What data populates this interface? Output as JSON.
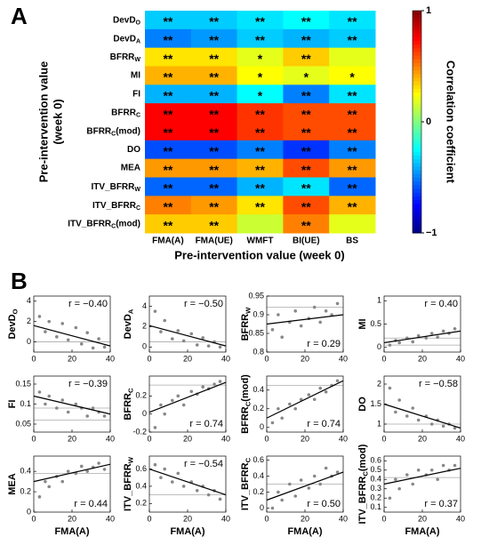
{
  "panels": [
    "A",
    "B"
  ],
  "chart_data": [
    {
      "type": "heatmap",
      "xlabel": "Pre-intervention value (week 0)",
      "ylabel": [
        "Pre-intervention value",
        "(week 0)"
      ],
      "colorbar_label": "Correlation coefficient",
      "clim": [
        -1,
        1
      ],
      "cticks": [
        1,
        0,
        {
          "value": -1,
          "label": "−1"
        }
      ],
      "colormap": "jet",
      "categories": [
        "FMA(A)",
        "FMA(UE)",
        "WMFT",
        "BI(UE)",
        "BS"
      ],
      "row_labels": [
        {
          "main": "DevD",
          "sub": "O"
        },
        {
          "main": "DevD",
          "sub": "A"
        },
        {
          "main": "BFRR",
          "sub": "W"
        },
        "MI",
        "FI",
        {
          "main": "BFRR",
          "sub": "C"
        },
        {
          "main": "BFRR",
          "sub": "C",
          "tail": "(mod)"
        },
        "DO",
        "MEA",
        {
          "main": "ITV_BFRR",
          "sub": "W"
        },
        {
          "main": "ITV_BFRR",
          "sub": "C"
        },
        {
          "main": "ITV_BFRR",
          "sub": "C",
          "tail": "(mod)"
        }
      ],
      "values": [
        [
          -0.35,
          -0.35,
          -0.3,
          -0.25,
          -0.3
        ],
        [
          -0.5,
          -0.45,
          -0.35,
          -0.4,
          -0.35
        ],
        [
          0.3,
          0.3,
          0.2,
          0.35,
          0.2
        ],
        [
          0.4,
          0.4,
          0.25,
          0.2,
          0.25
        ],
        [
          -0.4,
          -0.4,
          -0.25,
          -0.5,
          -0.3
        ],
        [
          0.75,
          0.75,
          0.65,
          0.6,
          0.6
        ],
        [
          0.75,
          0.75,
          0.65,
          0.6,
          0.6
        ],
        [
          -0.6,
          -0.6,
          -0.5,
          -0.65,
          -0.5
        ],
        [
          0.45,
          0.45,
          0.4,
          0.6,
          0.45
        ],
        [
          -0.55,
          -0.55,
          -0.4,
          -0.3,
          -0.55
        ],
        [
          0.5,
          0.45,
          0.3,
          0.6,
          0.4
        ],
        [
          0.35,
          0.35,
          0.15,
          0.5,
          0.2
        ]
      ],
      "significance": [
        [
          "**",
          "**",
          "**",
          "**",
          "**"
        ],
        [
          "**",
          "**",
          "**",
          "**",
          "**"
        ],
        [
          "**",
          "**",
          "*",
          "**",
          null
        ],
        [
          "**",
          "**",
          "*",
          "*",
          "*"
        ],
        [
          "**",
          "**",
          "*",
          "**",
          "**"
        ],
        [
          "**",
          "**",
          "**",
          "**",
          "**"
        ],
        [
          "**",
          "**",
          "**",
          "**",
          "**"
        ],
        [
          "**",
          "**",
          "**",
          "**",
          "**"
        ],
        [
          "**",
          "**",
          "**",
          "**",
          "**"
        ],
        [
          "**",
          "**",
          "**",
          "**",
          "**"
        ],
        [
          "**",
          "**",
          "**",
          "**",
          "**"
        ],
        [
          "**",
          "**",
          null,
          "**",
          null
        ]
      ]
    },
    {
      "type": "scatter",
      "ylabel": {
        "main": "DevD",
        "sub": "O"
      },
      "annotation": "r = −0.40",
      "annotation_corner": "top-right",
      "xlim": [
        0,
        40
      ],
      "xticks": [
        0,
        20,
        40
      ],
      "ylim": [
        -1,
        4.5
      ],
      "yticks": [
        0,
        2,
        4
      ],
      "color": "#888888",
      "x": [
        3,
        6,
        8,
        12,
        15,
        18,
        22,
        25,
        28,
        31,
        34,
        37
      ],
      "y": [
        2.5,
        1.0,
        2.0,
        0.5,
        1.8,
        0.2,
        1.4,
        -0.2,
        0.9,
        -0.6,
        0.3,
        -0.5
      ],
      "ref_lines": [
        0
      ],
      "fit": {
        "x": [
          0,
          40
        ],
        "y": [
          1.6,
          -0.4
        ]
      }
    },
    {
      "type": "scatter",
      "ylabel": {
        "main": "DevD",
        "sub": "A"
      },
      "annotation": "r = −0.50",
      "annotation_corner": "top-right",
      "xlim": [
        0,
        40
      ],
      "xticks": [
        0,
        20,
        40
      ],
      "ylim": [
        -0.5,
        5
      ],
      "yticks": [
        0,
        2,
        4
      ],
      "color": "#888888",
      "x": [
        3,
        6,
        8,
        12,
        15,
        18,
        22,
        25,
        28,
        31,
        34,
        37
      ],
      "y": [
        3.5,
        1.5,
        2.6,
        0.8,
        1.6,
        0.6,
        1.3,
        0.2,
        0.9,
        0.1,
        0.5,
        0.0
      ],
      "ref_lines": [
        0.5
      ],
      "fit": {
        "x": [
          0,
          40
        ],
        "y": [
          2.1,
          0.1
        ]
      }
    },
    {
      "type": "scatter",
      "ylabel": {
        "main": "BFRR",
        "sub": "W"
      },
      "annotation": "r = 0.29",
      "annotation_corner": "bottom-right",
      "xlim": [
        0,
        40
      ],
      "xticks": [
        0,
        20,
        40
      ],
      "ylim": [
        0.8,
        0.95
      ],
      "yticks": [
        0.8,
        0.85,
        0.9,
        0.95
      ],
      "color": "#888888",
      "x": [
        3,
        6,
        8,
        12,
        15,
        18,
        22,
        25,
        28,
        31,
        34,
        37
      ],
      "y": [
        0.86,
        0.9,
        0.84,
        0.88,
        0.91,
        0.87,
        0.89,
        0.92,
        0.88,
        0.91,
        0.9,
        0.93
      ],
      "ref_lines": [
        0.92
      ],
      "fit": {
        "x": [
          0,
          40
        ],
        "y": [
          0.875,
          0.9
        ]
      }
    },
    {
      "type": "scatter",
      "ylabel": "MI",
      "annotation": "r = 0.40",
      "annotation_corner": "top-right",
      "xlim": [
        0,
        40
      ],
      "xticks": [
        0,
        20,
        40
      ],
      "ylim": [
        -0.1,
        1.1
      ],
      "yticks": [
        0,
        0.5,
        1
      ],
      "color": "#888888",
      "x": [
        3,
        6,
        8,
        12,
        15,
        18,
        22,
        25,
        28,
        31,
        34,
        37
      ],
      "y": [
        0.05,
        0.15,
        0.1,
        0.2,
        0.12,
        0.25,
        0.2,
        0.3,
        0.22,
        0.35,
        0.3,
        0.4
      ],
      "ref_lines": [
        0.05,
        0.2
      ],
      "fit": {
        "x": [
          0,
          40
        ],
        "y": [
          0.1,
          0.35
        ]
      }
    },
    {
      "type": "scatter",
      "ylabel": "FI",
      "annotation": "r = −0.39",
      "annotation_corner": "top-right",
      "xlim": [
        0,
        40
      ],
      "xticks": [
        0,
        20,
        40
      ],
      "ylim": [
        0.03,
        0.17
      ],
      "yticks": [
        0.05,
        0.1,
        0.15
      ],
      "color": "#888888",
      "x": [
        3,
        6,
        8,
        12,
        15,
        18,
        22,
        25,
        28,
        31,
        34,
        37
      ],
      "y": [
        0.13,
        0.1,
        0.12,
        0.09,
        0.11,
        0.08,
        0.1,
        0.09,
        0.07,
        0.09,
        0.08,
        0.07
      ],
      "ref_lines": [
        0.06,
        0.09
      ],
      "fit": {
        "x": [
          0,
          40
        ],
        "y": [
          0.12,
          0.075
        ]
      }
    },
    {
      "type": "scatter",
      "ylabel": {
        "main": "BFRR",
        "sub": "C"
      },
      "annotation": "r = 0.74",
      "annotation_corner": "bottom-right",
      "xlim": [
        0,
        40
      ],
      "xticks": [
        0,
        20,
        40
      ],
      "ylim": [
        -0.2,
        0.42
      ],
      "yticks": [
        -0.2,
        0,
        0.2
      ],
      "color": "#888888",
      "x": [
        3,
        6,
        8,
        12,
        15,
        18,
        22,
        25,
        28,
        31,
        34,
        37
      ],
      "y": [
        -0.15,
        0.1,
        0.0,
        0.15,
        0.2,
        0.1,
        0.25,
        0.22,
        0.3,
        0.28,
        0.33,
        0.36
      ],
      "ref_lines": [
        0.32
      ],
      "fit": {
        "x": [
          0,
          40
        ],
        "y": [
          0.02,
          0.35
        ]
      }
    },
    {
      "type": "scatter",
      "ylabel": {
        "main": "BFRR",
        "sub": "C",
        "tail": "(mod)"
      },
      "annotation": "r = 0.74",
      "annotation_corner": "bottom-right",
      "xlim": [
        0,
        40
      ],
      "xticks": [
        0,
        20,
        40
      ],
      "ylim": [
        -0.05,
        0.55
      ],
      "yticks": [
        0,
        0.2,
        0.4
      ],
      "color": "#888888",
      "x": [
        3,
        6,
        8,
        12,
        15,
        18,
        22,
        25,
        28,
        31,
        34,
        37
      ],
      "y": [
        0.05,
        0.2,
        0.1,
        0.25,
        0.2,
        0.3,
        0.35,
        0.3,
        0.42,
        0.38,
        0.45,
        0.5
      ],
      "ref_lines": [
        0.45
      ],
      "fit": {
        "x": [
          0,
          40
        ],
        "y": [
          0.1,
          0.5
        ]
      }
    },
    {
      "type": "scatter",
      "ylabel": "DO",
      "annotation": "r = −0.58",
      "annotation_corner": "top-right",
      "xlim": [
        0,
        40
      ],
      "xticks": [
        0,
        20,
        40
      ],
      "ylim": [
        0.8,
        2.2
      ],
      "yticks": [
        1,
        1.5,
        2
      ],
      "color": "#888888",
      "x": [
        3,
        6,
        8,
        12,
        15,
        18,
        22,
        25,
        28,
        31,
        34,
        37
      ],
      "y": [
        1.9,
        1.3,
        1.6,
        1.2,
        1.4,
        1.1,
        1.2,
        1.0,
        1.1,
        0.95,
        1.0,
        0.9
      ],
      "ref_lines": [
        1
      ],
      "fit": {
        "x": [
          0,
          40
        ],
        "y": [
          1.5,
          0.9
        ]
      }
    },
    {
      "type": "scatter",
      "ylabel": "MEA",
      "xlabel": "FMA(A)",
      "annotation": "r = 0.44",
      "annotation_corner": "bottom-right",
      "xlim": [
        0,
        40
      ],
      "xticks": [
        0,
        20,
        40
      ],
      "ylim": [
        0,
        0.55
      ],
      "yticks": [
        0,
        0.2,
        0.4
      ],
      "color": "#888888",
      "x": [
        3,
        6,
        8,
        12,
        15,
        18,
        22,
        25,
        28,
        31,
        34,
        37
      ],
      "y": [
        0.15,
        0.3,
        0.25,
        0.35,
        0.3,
        0.4,
        0.38,
        0.45,
        0.4,
        0.44,
        0.48,
        0.42
      ],
      "ref_lines": [
        0.38
      ],
      "fit": {
        "x": [
          0,
          40
        ],
        "y": [
          0.3,
          0.47
        ]
      }
    },
    {
      "type": "scatter",
      "ylabel": {
        "main": "ITV_BFRR",
        "sub": "W"
      },
      "xlabel": "FMA(A)",
      "annotation": "r = −0.54",
      "annotation_corner": "top-right",
      "xlim": [
        0,
        40
      ],
      "xticks": [
        0,
        20,
        40
      ],
      "ylim": [
        0.1,
        0.75
      ],
      "yticks": [
        0.2,
        0.4,
        0.6
      ],
      "color": "#888888",
      "x": [
        3,
        6,
        8,
        12,
        15,
        18,
        22,
        25,
        28,
        31,
        34,
        37
      ],
      "y": [
        0.65,
        0.5,
        0.6,
        0.45,
        0.55,
        0.4,
        0.45,
        0.35,
        0.4,
        0.3,
        0.35,
        0.25
      ],
      "ref_lines": [
        0.3
      ],
      "fit": {
        "x": [
          0,
          40
        ],
        "y": [
          0.6,
          0.3
        ]
      }
    },
    {
      "type": "scatter",
      "ylabel": {
        "main": "ITV_BFRR",
        "sub": "C"
      },
      "xlabel": "FMA(A)",
      "annotation": "r = 0.50",
      "annotation_corner": "bottom-right",
      "xlim": [
        0,
        40
      ],
      "xticks": [
        0,
        20,
        40
      ],
      "ylim": [
        -0.05,
        0.65
      ],
      "yticks": [
        0,
        0.2,
        0.4,
        0.6
      ],
      "color": "#888888",
      "x": [
        3,
        6,
        8,
        12,
        15,
        18,
        22,
        25,
        28,
        31,
        34,
        37
      ],
      "y": [
        0.0,
        0.2,
        0.1,
        0.3,
        0.15,
        0.35,
        0.25,
        0.4,
        0.3,
        0.5,
        0.4,
        0.45
      ],
      "ref_lines": [
        0.3
      ],
      "fit": {
        "x": [
          0,
          40
        ],
        "y": [
          0.1,
          0.45
        ]
      }
    },
    {
      "type": "scatter",
      "ylabel": {
        "main": "ITV_BFRR",
        "sub": "C",
        "tail": "(mod)"
      },
      "xlabel": "FMA(A)",
      "annotation": "r = 0.37",
      "annotation_corner": "bottom-right",
      "xlim": [
        0,
        40
      ],
      "xticks": [
        0,
        20,
        40
      ],
      "ylim": [
        0.05,
        0.65
      ],
      "yticks": [
        0.1,
        0.2,
        0.3,
        0.4,
        0.5,
        0.6
      ],
      "color": "#888888",
      "x": [
        3,
        6,
        8,
        12,
        15,
        18,
        22,
        25,
        28,
        31,
        34,
        37
      ],
      "y": [
        0.2,
        0.4,
        0.3,
        0.45,
        0.35,
        0.5,
        0.45,
        0.5,
        0.4,
        0.55,
        0.5,
        0.55
      ],
      "ref_lines": [
        0.42
      ],
      "fit": {
        "x": [
          0,
          40
        ],
        "y": [
          0.35,
          0.52
        ]
      }
    }
  ]
}
